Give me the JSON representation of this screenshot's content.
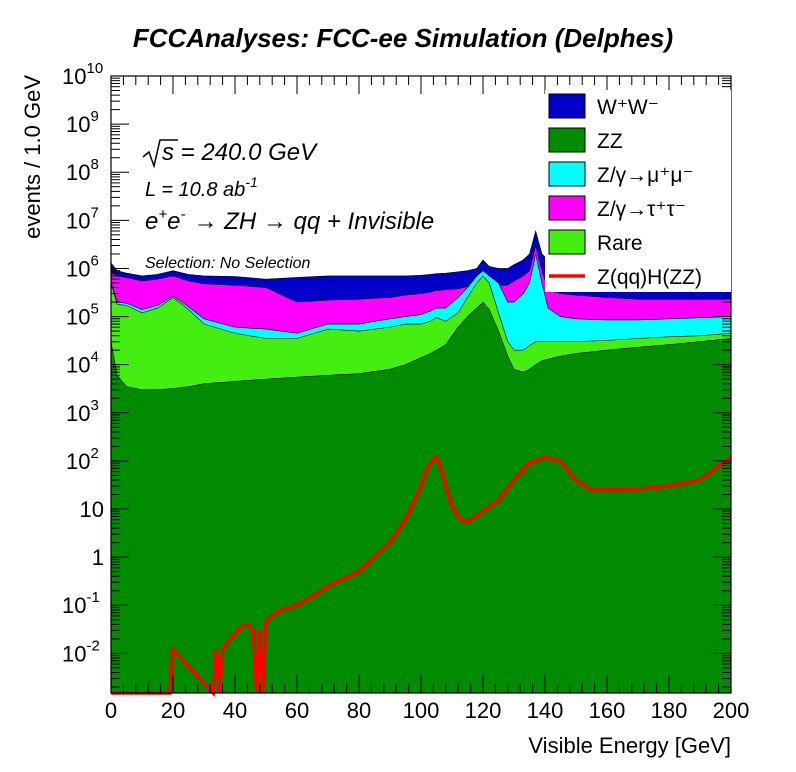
{
  "chart_data": {
    "type": "area",
    "stacked": true,
    "title": "FCCAnalyses: FCC-ee Simulation (Delphes)",
    "xlabel": "Visible Energy [GeV]",
    "ylabel": "events / 1.0 GeV",
    "xlim": [
      0,
      200
    ],
    "ylim": [
      0.0015,
      10000000000
    ],
    "yscale": "log",
    "x_ticks": [
      "0",
      "20",
      "40",
      "60",
      "80",
      "100",
      "120",
      "140",
      "160",
      "180",
      "200"
    ],
    "y_ticks": [
      {
        "base": "10",
        "exp": "-2"
      },
      {
        "base": "10",
        "exp": "-1"
      },
      {
        "base": "1",
        "exp": ""
      },
      {
        "base": "10",
        "exp": ""
      },
      {
        "base": "10",
        "exp": "2"
      },
      {
        "base": "10",
        "exp": "3"
      },
      {
        "base": "10",
        "exp": "4"
      },
      {
        "base": "10",
        "exp": "5"
      },
      {
        "base": "10",
        "exp": "6"
      },
      {
        "base": "10",
        "exp": "7"
      },
      {
        "base": "10",
        "exp": "8"
      },
      {
        "base": "10",
        "exp": "9"
      },
      {
        "base": "10",
        "exp": "10"
      }
    ],
    "annotations": {
      "sqrt_s": "s = 240.0 GeV",
      "lumi_prefix": "L = 10.8 ab",
      "lumi_exp": "-1",
      "process": "→ ZH → qq + Invisible",
      "selection": "Selection: No Selection"
    },
    "legend": {
      "placement": "top-right",
      "entries": [
        {
          "key": "ww",
          "label": "W⁺W⁻",
          "color": "#0000c8",
          "style": "fill"
        },
        {
          "key": "zz",
          "label": "ZZ",
          "color": "#008c00",
          "style": "fill"
        },
        {
          "key": "zmumu",
          "label": "Z/γ→μ⁺μ⁻",
          "color": "#00ffff",
          "style": "fill"
        },
        {
          "key": "ztautau",
          "label": "Z/γ→τ⁺τ⁻",
          "color": "#ff00ff",
          "style": "fill"
        },
        {
          "key": "rare",
          "label": "Rare",
          "color": "#44ee11",
          "style": "fill"
        },
        {
          "key": "signal",
          "label": "Z(qq)H(ZZ)",
          "color": "#ff0000",
          "style": "line"
        }
      ]
    },
    "x": [
      0,
      2,
      5,
      10,
      15,
      20,
      25,
      30,
      40,
      50,
      60,
      70,
      80,
      90,
      95,
      100,
      103,
      105,
      108,
      112,
      115,
      118,
      120,
      122,
      125,
      128,
      130,
      133,
      135,
      137,
      139,
      141,
      145,
      150,
      160,
      170,
      180,
      190,
      200
    ],
    "stack_tops": [
      {
        "name": "ZZ",
        "key": "zz",
        "values": [
          30000,
          6000,
          3500,
          3000,
          3000,
          3200,
          3500,
          4000,
          4500,
          5000,
          5500,
          6000,
          6500,
          8000,
          10000,
          14000,
          17000,
          20000,
          26000,
          60000,
          100000,
          150000,
          200000,
          140000,
          50000,
          15000,
          8000,
          7000,
          8000,
          10000,
          12000,
          13000,
          15000,
          17000,
          20000,
          23000,
          26000,
          30000,
          35000
        ]
      },
      {
        "name": "Rare",
        "key": "rare",
        "values": [
          500000,
          180000,
          170000,
          120000,
          150000,
          250000,
          140000,
          70000,
          45000,
          35000,
          35000,
          55000,
          50000,
          60000,
          70000,
          70000,
          80000,
          95000,
          80000,
          120000,
          250000,
          500000,
          700000,
          500000,
          120000,
          30000,
          20000,
          20000,
          25000,
          30000,
          30000,
          30000,
          30000,
          30000,
          32000,
          35000,
          38000,
          40000,
          45000
        ]
      },
      {
        "name": "Z/γ→μ⁺μ⁻",
        "key": "zmumu",
        "values": [
          520000,
          200000,
          190000,
          140000,
          170000,
          270000,
          160000,
          90000,
          60000,
          55000,
          45000,
          70000,
          70000,
          90000,
          100000,
          110000,
          130000,
          150000,
          150000,
          250000,
          400000,
          700000,
          900000,
          700000,
          500000,
          200000,
          200000,
          300000,
          500000,
          2000000,
          500000,
          150000,
          100000,
          90000,
          85000,
          85000,
          90000,
          95000,
          100000
        ]
      },
      {
        "name": "Z/γ→τ⁺τ⁻",
        "key": "ztautau",
        "values": [
          800000,
          700000,
          650000,
          550000,
          600000,
          700000,
          550000,
          480000,
          450000,
          400000,
          200000,
          220000,
          230000,
          250000,
          280000,
          300000,
          320000,
          350000,
          360000,
          380000,
          420000,
          500000,
          700000,
          500000,
          450000,
          450000,
          550000,
          700000,
          900000,
          3000000,
          900000,
          350000,
          300000,
          280000,
          250000,
          230000,
          230000,
          230000,
          230000
        ]
      },
      {
        "name": "W⁺W⁻",
        "key": "ww",
        "values": [
          1300000,
          900000,
          800000,
          700000,
          750000,
          900000,
          750000,
          700000,
          680000,
          600000,
          650000,
          700000,
          700000,
          700000,
          700000,
          720000,
          750000,
          780000,
          800000,
          850000,
          900000,
          1000000,
          1500000,
          1100000,
          1000000,
          1000000,
          1200000,
          1500000,
          2000000,
          6000000,
          2000000,
          1500000,
          1400000,
          1400000,
          1400000,
          1400000,
          1400000,
          1400000,
          1400000
        ]
      }
    ],
    "signal": {
      "name": "Z(qq)H(ZZ)",
      "x": [
        0,
        19,
        20,
        33,
        34,
        35,
        36,
        38,
        40,
        42,
        44,
        46,
        47,
        48,
        49,
        50,
        52,
        55,
        58,
        60,
        62,
        65,
        70,
        75,
        80,
        85,
        90,
        95,
        98,
        100,
        102,
        104,
        105,
        106,
        108,
        110,
        112,
        114,
        115,
        117,
        120,
        125,
        130,
        135,
        140,
        145,
        150,
        155,
        160,
        170,
        180,
        190,
        195,
        200
      ],
      "y": [
        0.0015,
        0.0015,
        0.012,
        0.0015,
        0.012,
        0.0015,
        0.012,
        0.018,
        0.025,
        0.035,
        0.04,
        0.03,
        0.0015,
        0.03,
        0.0015,
        0.045,
        0.06,
        0.08,
        0.09,
        0.1,
        0.12,
        0.15,
        0.25,
        0.35,
        0.5,
        1,
        2,
        6,
        15,
        30,
        70,
        110,
        120,
        90,
        30,
        12,
        7,
        5.5,
        5.5,
        6.5,
        9,
        15,
        40,
        90,
        120,
        100,
        40,
        25,
        25,
        26,
        30,
        40,
        70,
        120
      ]
    }
  }
}
